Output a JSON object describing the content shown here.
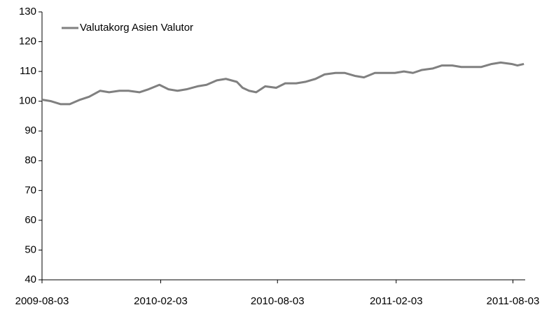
{
  "chart_data": {
    "type": "line",
    "x": [
      "2009-08-03",
      "2009-08-17",
      "2009-09-01",
      "2009-09-15",
      "2009-10-01",
      "2009-10-15",
      "2009-11-01",
      "2009-11-15",
      "2009-12-01",
      "2009-12-15",
      "2010-01-01",
      "2010-01-15",
      "2010-02-01",
      "2010-02-15",
      "2010-03-01",
      "2010-03-15",
      "2010-04-01",
      "2010-04-15",
      "2010-05-01",
      "2010-05-15",
      "2010-06-01",
      "2010-06-10",
      "2010-06-20",
      "2010-07-01",
      "2010-07-15",
      "2010-08-01",
      "2010-08-15",
      "2010-09-01",
      "2010-09-15",
      "2010-10-01",
      "2010-10-15",
      "2010-11-01",
      "2010-11-15",
      "2010-12-01",
      "2010-12-15",
      "2011-01-01",
      "2011-01-15",
      "2011-02-01",
      "2011-02-15",
      "2011-03-01",
      "2011-03-15",
      "2011-04-01",
      "2011-04-15",
      "2011-05-01",
      "2011-05-15",
      "2011-06-01",
      "2011-06-15",
      "2011-07-01",
      "2011-07-15",
      "2011-08-01",
      "2011-08-10",
      "2011-08-20"
    ],
    "series": [
      {
        "name": "Valutakorg Asien Valutor",
        "color": "#808080",
        "values": [
          100.5,
          100,
          99,
          99,
          100.5,
          101.5,
          103.5,
          103,
          103.5,
          103.5,
          103,
          104,
          105.5,
          104,
          103.5,
          104,
          105,
          105.5,
          107,
          107.5,
          106.5,
          104.5,
          103.5,
          103,
          105,
          104.5,
          106,
          106,
          106.5,
          107.5,
          109,
          109.5,
          109.5,
          108.5,
          108,
          109.5,
          109.5,
          109.5,
          110,
          109.5,
          110.5,
          111,
          112,
          112,
          111.5,
          111.5,
          111.5,
          112.5,
          113,
          112.5,
          112,
          112.5
        ]
      }
    ],
    "xlim": [
      "2009-08-03",
      "2011-08-22"
    ],
    "xticks": [
      "2009-08-03",
      "2010-02-03",
      "2010-08-03",
      "2011-02-03",
      "2011-08-03"
    ],
    "ylim": [
      40,
      130
    ],
    "yticks": [
      40,
      50,
      60,
      70,
      80,
      90,
      100,
      110,
      120,
      130
    ],
    "legend": "top-left"
  }
}
